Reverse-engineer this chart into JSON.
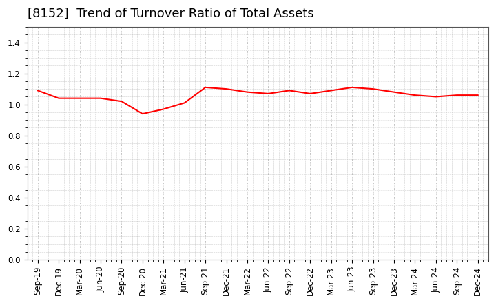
{
  "title": "[8152]  Trend of Turnover Ratio of Total Assets",
  "x_labels": [
    "Sep-19",
    "Dec-19",
    "Mar-20",
    "Jun-20",
    "Sep-20",
    "Dec-20",
    "Mar-21",
    "Jun-21",
    "Sep-21",
    "Dec-21",
    "Mar-22",
    "Jun-22",
    "Sep-22",
    "Dec-22",
    "Mar-23",
    "Jun-23",
    "Sep-23",
    "Dec-23",
    "Mar-24",
    "Jun-24",
    "Sep-24",
    "Dec-24"
  ],
  "y_values": [
    1.09,
    1.04,
    1.04,
    1.04,
    1.02,
    0.94,
    0.97,
    1.01,
    1.11,
    1.1,
    1.08,
    1.07,
    1.09,
    1.07,
    1.09,
    1.11,
    1.1,
    1.08,
    1.06,
    1.05,
    1.06,
    1.06
  ],
  "line_color": "#FF0000",
  "line_width": 1.5,
  "ylim": [
    0.0,
    1.5
  ],
  "yticks": [
    0.0,
    0.2,
    0.4,
    0.6,
    0.8,
    1.0,
    1.2,
    1.4
  ],
  "background_color": "#ffffff",
  "grid_color": "#aaaaaa",
  "title_fontsize": 13,
  "tick_fontsize": 8.5
}
